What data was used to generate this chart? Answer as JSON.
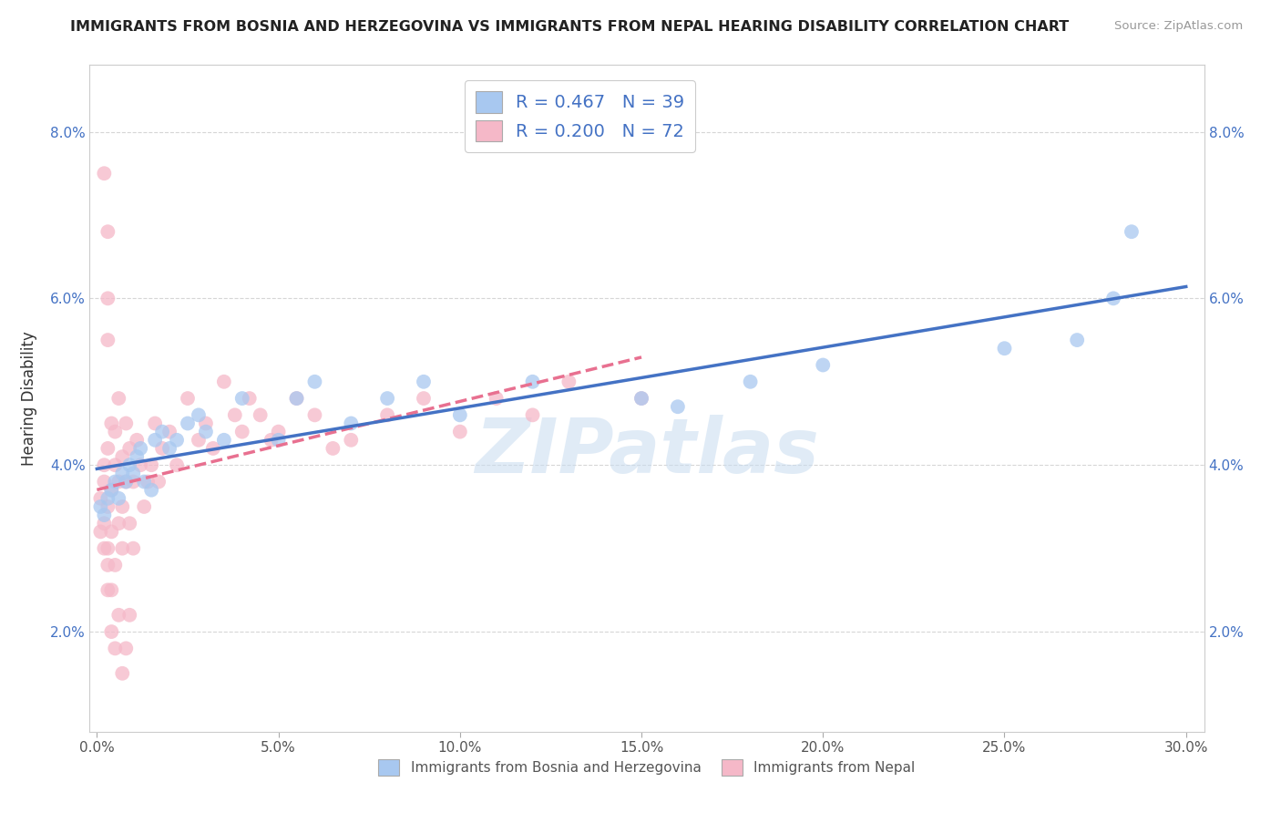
{
  "title": "IMMIGRANTS FROM BOSNIA AND HERZEGOVINA VS IMMIGRANTS FROM NEPAL HEARING DISABILITY CORRELATION CHART",
  "source": "Source: ZipAtlas.com",
  "ylabel": "Hearing Disability",
  "watermark": "ZIPatlas",
  "xlim": [
    -0.002,
    0.305
  ],
  "ylim": [
    0.008,
    0.088
  ],
  "xticks": [
    0.0,
    0.05,
    0.1,
    0.15,
    0.2,
    0.25,
    0.3
  ],
  "yticks": [
    0.02,
    0.04,
    0.06,
    0.08
  ],
  "ytick_labels": [
    "2.0%",
    "4.0%",
    "6.0%",
    "8.0%"
  ],
  "xtick_labels": [
    "0.0%",
    "5.0%",
    "10.0%",
    "15.0%",
    "20.0%",
    "25.0%",
    "30.0%"
  ],
  "legend1_label": "R = 0.467   N = 39",
  "legend2_label": "R = 0.200   N = 72",
  "legend_bottom1": "Immigrants from Bosnia and Herzegovina",
  "legend_bottom2": "Immigrants from Nepal",
  "blue_color": "#A8C8F0",
  "pink_color": "#F5B8C8",
  "blue_line_color": "#4472C4",
  "pink_line_color": "#E87090",
  "bosnia_x": [
    0.001,
    0.002,
    0.003,
    0.004,
    0.005,
    0.006,
    0.007,
    0.008,
    0.009,
    0.01,
    0.011,
    0.012,
    0.013,
    0.015,
    0.016,
    0.018,
    0.02,
    0.022,
    0.025,
    0.028,
    0.03,
    0.035,
    0.04,
    0.05,
    0.055,
    0.06,
    0.07,
    0.08,
    0.09,
    0.1,
    0.12,
    0.15,
    0.16,
    0.18,
    0.2,
    0.25,
    0.27,
    0.28,
    0.285
  ],
  "bosnia_y": [
    0.035,
    0.034,
    0.036,
    0.037,
    0.038,
    0.036,
    0.039,
    0.038,
    0.04,
    0.039,
    0.041,
    0.042,
    0.038,
    0.037,
    0.043,
    0.044,
    0.042,
    0.043,
    0.045,
    0.046,
    0.044,
    0.043,
    0.048,
    0.043,
    0.048,
    0.05,
    0.045,
    0.048,
    0.05,
    0.046,
    0.05,
    0.048,
    0.047,
    0.05,
    0.052,
    0.054,
    0.055,
    0.06,
    0.068
  ],
  "nepal_x": [
    0.001,
    0.001,
    0.002,
    0.002,
    0.002,
    0.003,
    0.003,
    0.003,
    0.004,
    0.004,
    0.004,
    0.005,
    0.005,
    0.005,
    0.006,
    0.006,
    0.006,
    0.007,
    0.007,
    0.007,
    0.008,
    0.008,
    0.009,
    0.009,
    0.01,
    0.01,
    0.011,
    0.012,
    0.013,
    0.014,
    0.015,
    0.016,
    0.017,
    0.018,
    0.02,
    0.022,
    0.025,
    0.028,
    0.03,
    0.032,
    0.035,
    0.038,
    0.04,
    0.042,
    0.045,
    0.048,
    0.05,
    0.055,
    0.06,
    0.065,
    0.07,
    0.08,
    0.09,
    0.1,
    0.11,
    0.12,
    0.13,
    0.15,
    0.002,
    0.003,
    0.003,
    0.004,
    0.005,
    0.006,
    0.007,
    0.008,
    0.009,
    0.002,
    0.003,
    0.004,
    0.003,
    0.003
  ],
  "nepal_y": [
    0.036,
    0.032,
    0.038,
    0.033,
    0.04,
    0.035,
    0.03,
    0.042,
    0.037,
    0.032,
    0.045,
    0.04,
    0.028,
    0.044,
    0.038,
    0.033,
    0.048,
    0.035,
    0.041,
    0.03,
    0.045,
    0.038,
    0.033,
    0.042,
    0.038,
    0.03,
    0.043,
    0.04,
    0.035,
    0.038,
    0.04,
    0.045,
    0.038,
    0.042,
    0.044,
    0.04,
    0.048,
    0.043,
    0.045,
    0.042,
    0.05,
    0.046,
    0.044,
    0.048,
    0.046,
    0.043,
    0.044,
    0.048,
    0.046,
    0.042,
    0.043,
    0.046,
    0.048,
    0.044,
    0.048,
    0.046,
    0.05,
    0.048,
    0.075,
    0.068,
    0.025,
    0.02,
    0.018,
    0.022,
    0.015,
    0.018,
    0.022,
    0.03,
    0.028,
    0.025,
    0.055,
    0.06
  ]
}
